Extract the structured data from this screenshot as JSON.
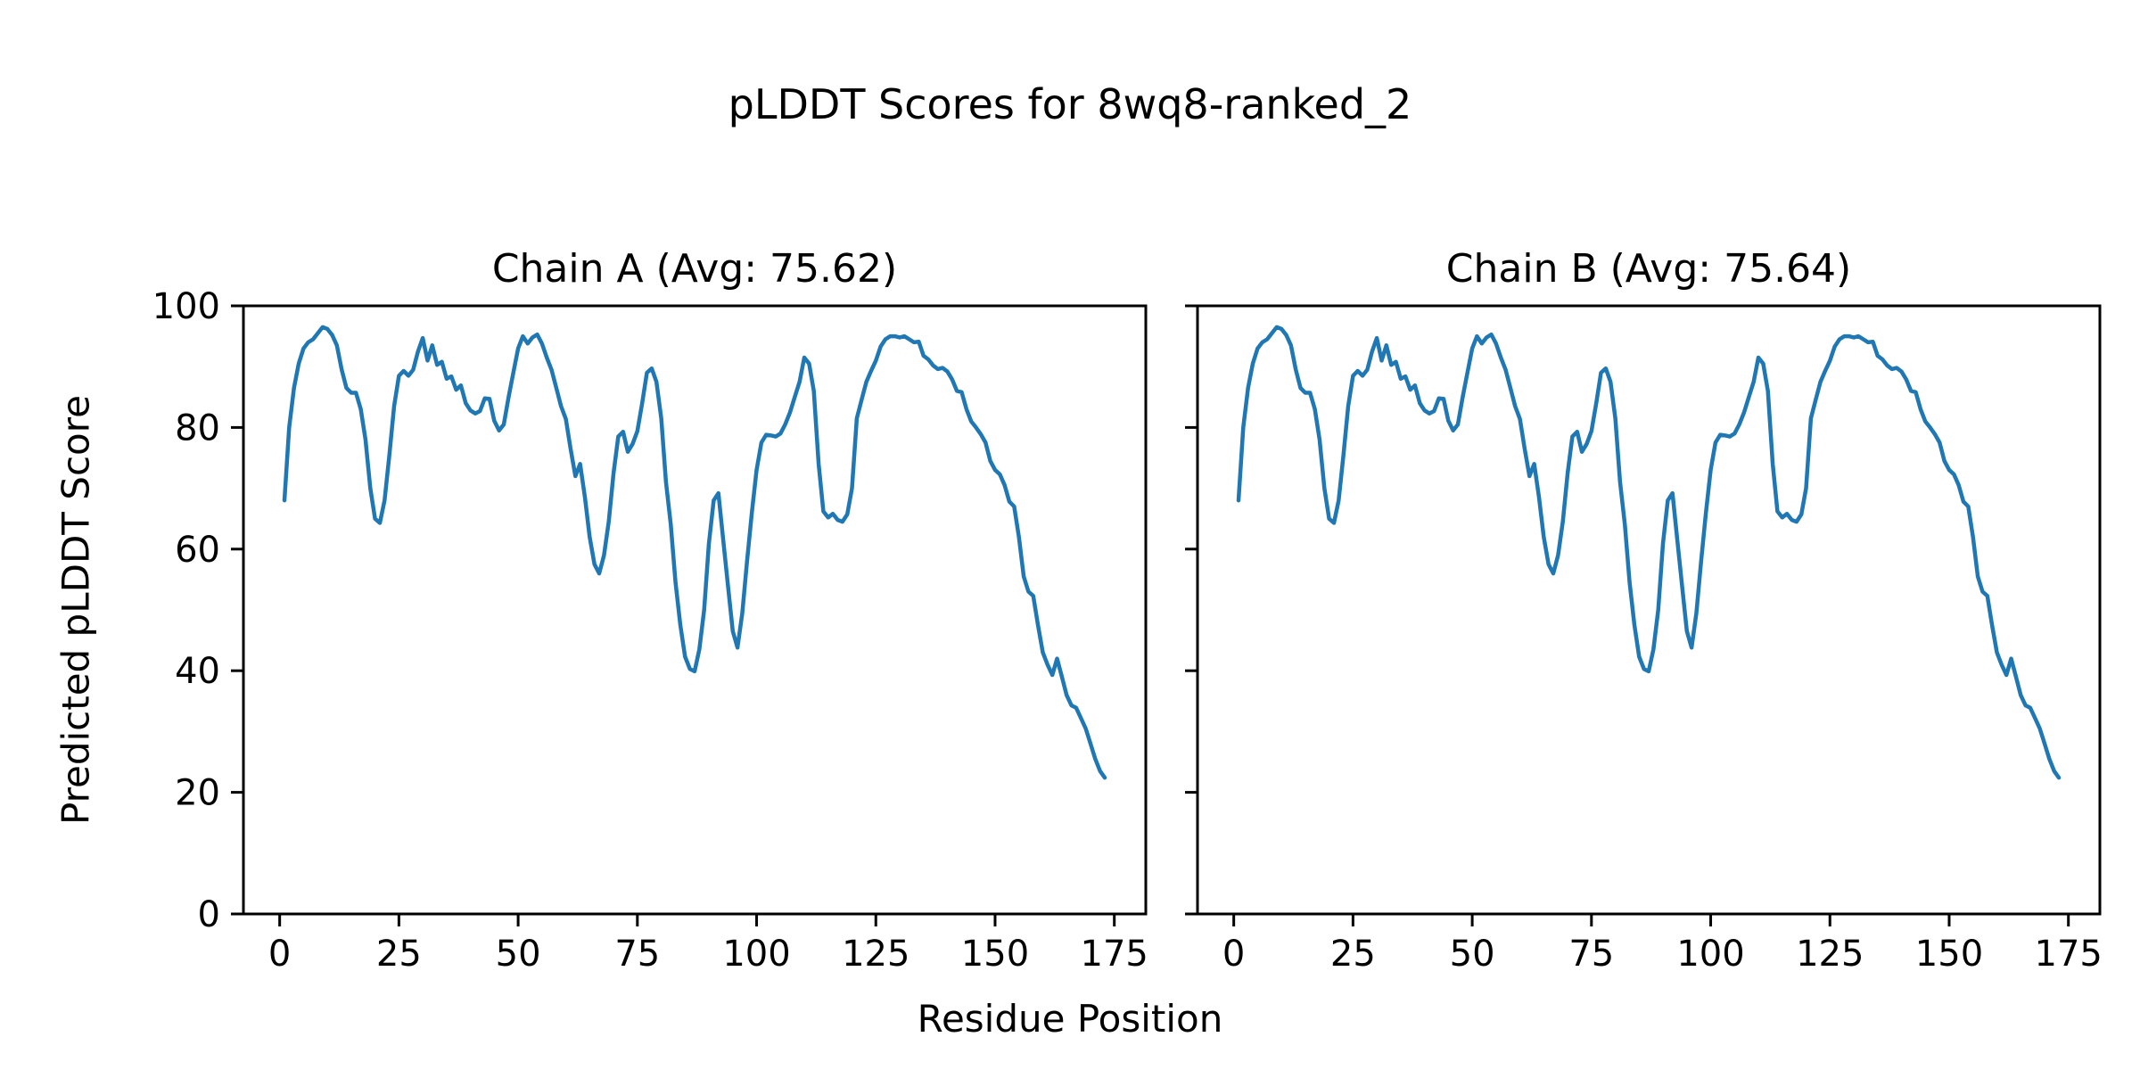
{
  "figure": {
    "suptitle": "pLDDT Scores for 8wq8-ranked_2",
    "xlabel": "Residue Position",
    "ylabel": "Predicted pLDDT Score",
    "background_color": "#ffffff",
    "line_color": "#1f77b4",
    "axis_color": "#000000"
  },
  "chart_data": [
    {
      "type": "line",
      "title": "Chain A (Avg: 75.62)",
      "avg": 75.62,
      "xlabel": "Residue Position",
      "ylabel": "Predicted pLDDT Score",
      "x_ticks": [
        0,
        25,
        50,
        75,
        100,
        125,
        150,
        175
      ],
      "y_ticks": [
        0,
        20,
        40,
        60,
        80,
        100
      ],
      "xlim": [
        -7.6,
        181.6
      ],
      "ylim": [
        0,
        100
      ],
      "grid": false,
      "x_start": 1,
      "series": [
        {
          "name": "pLDDT",
          "color": "#1f77b4",
          "values": [
            68,
            80,
            86.5,
            90.5,
            93,
            94,
            94.5,
            95.5,
            96.5,
            96.2,
            95.2,
            93.5,
            89.5,
            86.5,
            85.7,
            85.7,
            83,
            78,
            70,
            65,
            64.3,
            68,
            75.5,
            83.5,
            88.5,
            89.3,
            88.5,
            89.5,
            92.5,
            94.7,
            91,
            93.5,
            90.3,
            90.8,
            88,
            88.4,
            86.2,
            86.9,
            84,
            82.8,
            82.3,
            82.7,
            84.8,
            84.7,
            81.1,
            79.5,
            80.5,
            85,
            89,
            93,
            95,
            93.8,
            94.8,
            95.3,
            93.8,
            91.5,
            89.5,
            86.5,
            83.5,
            81.4,
            76.5,
            72,
            74,
            68.5,
            62,
            57.5,
            56,
            59,
            64.5,
            72.5,
            78.5,
            79.3,
            76,
            77.3,
            79.4,
            84,
            89,
            89.7,
            87.5,
            81.5,
            71,
            64,
            54.5,
            47.5,
            42.3,
            40.3,
            39.9,
            43.5,
            50,
            60.9,
            68,
            69.2,
            61.5,
            54,
            46.5,
            43.8,
            49.5,
            58,
            66,
            73,
            77.5,
            78.8,
            78.7,
            78.5,
            79,
            80.5,
            82.5,
            85,
            87.5,
            91.5,
            90.5,
            86,
            74,
            66.2,
            65.2,
            65.8,
            64.8,
            64.5,
            65.7,
            70,
            81.5,
            84.5,
            87.5,
            89.3,
            91,
            93.3,
            94.5,
            95,
            95,
            94.8,
            95,
            94.5,
            94,
            94.1,
            91.8,
            91.2,
            90.2,
            89.6,
            89.8,
            89.2,
            87.9,
            86,
            85.8,
            83,
            81,
            80,
            78.9,
            77.5,
            74.5,
            73,
            72.3,
            70.5,
            67.8,
            67,
            62,
            55.5,
            53,
            52.3,
            47.5,
            43,
            41,
            39.3,
            42,
            39,
            36,
            34.3,
            33.9,
            32.2,
            30.5,
            28,
            25.5,
            23.5,
            22.4
          ]
        }
      ]
    },
    {
      "type": "line",
      "title": "Chain B (Avg: 75.64)",
      "avg": 75.64,
      "xlabel": "Residue Position",
      "ylabel": "Predicted pLDDT Score",
      "x_ticks": [
        0,
        25,
        50,
        75,
        100,
        125,
        150,
        175
      ],
      "y_ticks": [
        0,
        20,
        40,
        60,
        80,
        100
      ],
      "xlim": [
        -7.6,
        181.6
      ],
      "ylim": [
        0,
        100
      ],
      "grid": false,
      "x_start": 1,
      "series": [
        {
          "name": "pLDDT",
          "color": "#1f77b4",
          "values": [
            68,
            80,
            86.5,
            90.5,
            93,
            94,
            94.5,
            95.5,
            96.5,
            96.2,
            95.2,
            93.5,
            89.5,
            86.5,
            85.7,
            85.7,
            83,
            78,
            70,
            65,
            64.3,
            68,
            75.5,
            83.5,
            88.5,
            89.3,
            88.5,
            89.5,
            92.5,
            94.7,
            91,
            93.5,
            90.3,
            90.8,
            88,
            88.4,
            86.2,
            86.9,
            84,
            82.8,
            82.3,
            82.7,
            84.8,
            84.7,
            81.1,
            79.5,
            80.5,
            85,
            89,
            93,
            95,
            93.8,
            94.8,
            95.3,
            93.8,
            91.5,
            89.5,
            86.5,
            83.5,
            81.4,
            76.5,
            72,
            74,
            68.5,
            62,
            57.5,
            56,
            59,
            64.5,
            72.5,
            78.5,
            79.3,
            76,
            77.3,
            79.4,
            84,
            89,
            89.7,
            87.5,
            81.5,
            71,
            64,
            54.5,
            47.5,
            42.3,
            40.3,
            39.9,
            43.5,
            50,
            60.9,
            68,
            69.2,
            61.5,
            54,
            46.5,
            43.8,
            49.5,
            58,
            66,
            73,
            77.5,
            78.8,
            78.7,
            78.5,
            79,
            80.5,
            82.5,
            85,
            87.5,
            91.5,
            90.5,
            86,
            74,
            66.2,
            65.2,
            65.8,
            64.8,
            64.5,
            65.7,
            70,
            81.5,
            84.5,
            87.5,
            89.3,
            91,
            93.3,
            94.5,
            95,
            95,
            94.8,
            95,
            94.5,
            94,
            94.1,
            91.8,
            91.2,
            90.2,
            89.6,
            89.8,
            89.2,
            87.9,
            86,
            85.8,
            83,
            81,
            80,
            78.9,
            77.5,
            74.5,
            73,
            72.3,
            70.5,
            67.8,
            67,
            62,
            55.5,
            53,
            52.3,
            47.5,
            43,
            41,
            39.3,
            42,
            39,
            36,
            34.3,
            33.9,
            32.2,
            30.5,
            28,
            25.5,
            23.5,
            22.4
          ]
        }
      ]
    }
  ]
}
